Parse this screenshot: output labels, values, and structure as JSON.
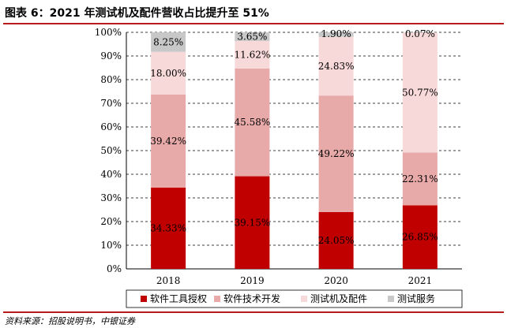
{
  "title": "图表 6：2021 年测试机及配件营收占比提升至 51%",
  "source": "资料来源：招股说明书，中银证券",
  "chart_data": {
    "type": "bar",
    "stacked": true,
    "categories": [
      "2018",
      "2019",
      "2020",
      "2021"
    ],
    "ylim": [
      0,
      100
    ],
    "yticks": [
      "0%",
      "10%",
      "20%",
      "30%",
      "40%",
      "50%",
      "60%",
      "70%",
      "80%",
      "90%",
      "100%"
    ],
    "grid": true,
    "legend_position": "bottom",
    "series": [
      {
        "name": "软件工具授权",
        "color": "#c00000",
        "values": [
          34.33,
          39.15,
          24.05,
          26.85
        ],
        "labels": [
          "34.33%",
          "39.15%",
          "24.05%",
          "26.85%"
        ]
      },
      {
        "name": "软件技术开发",
        "color": "#e8a9a9",
        "values": [
          39.42,
          45.58,
          49.22,
          22.31
        ],
        "labels": [
          "39.42%",
          "45.58%",
          "49.22%",
          "22.31%"
        ]
      },
      {
        "name": "测试机及配件",
        "color": "#f8d9d9",
        "values": [
          18.0,
          11.62,
          24.83,
          50.77
        ],
        "labels": [
          "18.00%",
          "11.62%",
          "24.83%",
          "50.77%"
        ]
      },
      {
        "name": "测试服务",
        "color": "#c8c8c8",
        "values": [
          8.25,
          3.65,
          1.9,
          0.07
        ],
        "labels": [
          "8.25%",
          "3.65%",
          "1.90%",
          "0.07%"
        ]
      }
    ]
  }
}
